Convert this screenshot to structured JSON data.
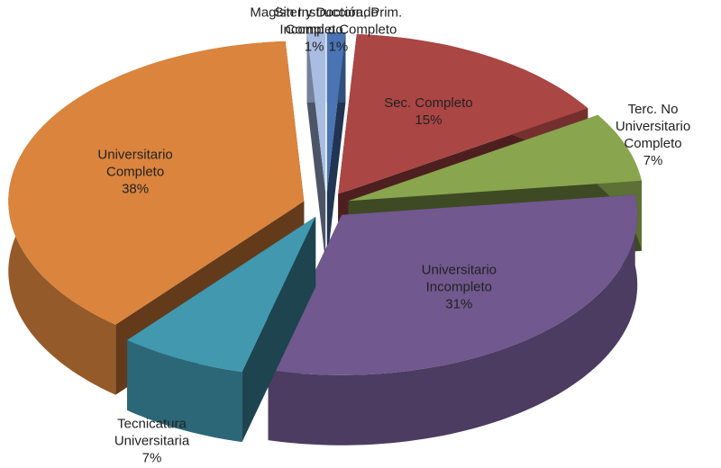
{
  "chart_data": {
    "type": "pie3d",
    "categories": [
      "Sin Instrucción, Prim.\nIncomp o Completo",
      "Sec. Completo",
      "Terc. No Universitario\nCompleto",
      "Universitario\nIncompleto",
      "Tecnicatura\nUniversitaria",
      "Universitario\nCompleto",
      "Magister y Doctorado\nCompleto"
    ],
    "values": [
      1,
      15,
      7,
      31,
      7,
      38,
      1
    ],
    "value_labels": [
      "1%",
      "15%",
      "7%",
      "31%",
      "7%",
      "38%",
      "1%"
    ],
    "colors": [
      "#4a74b4",
      "#aa4644",
      "#89a54e",
      "#71588f",
      "#4198af",
      "#db843d",
      "#a9bde3"
    ]
  }
}
